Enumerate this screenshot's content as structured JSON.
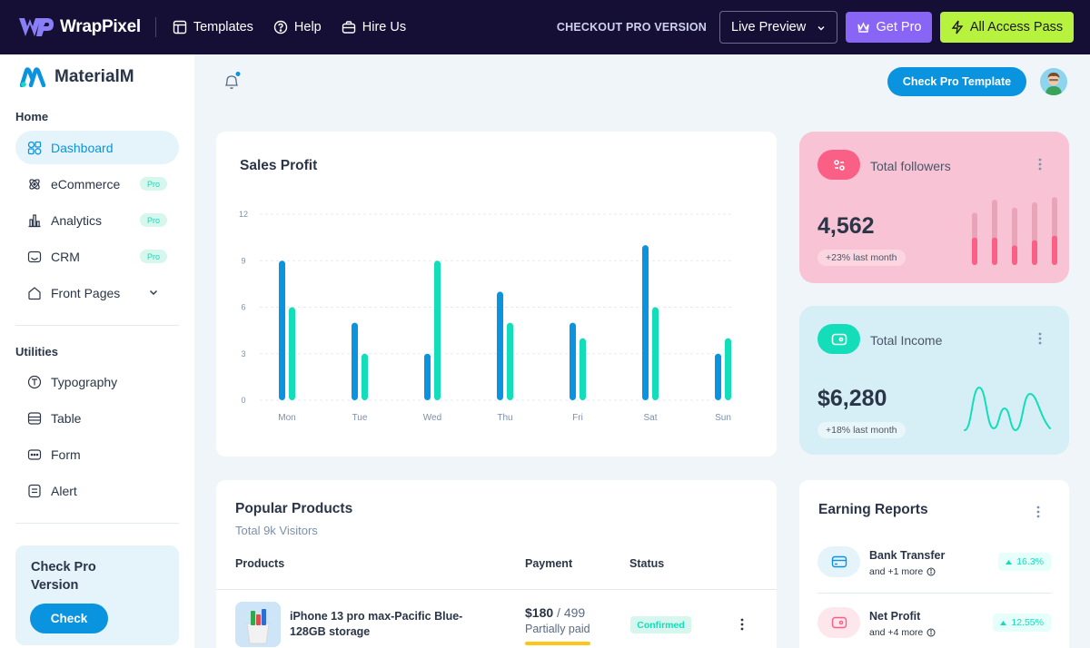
{
  "topbar": {
    "brand": "WrapPixel",
    "links": [
      {
        "label": "Templates",
        "icon": "layout-icon"
      },
      {
        "label": "Help",
        "icon": "help-circle-icon"
      },
      {
        "label": "Hire Us",
        "icon": "briefcase-icon"
      }
    ],
    "checkout_label": "CHECKOUT PRO VERSION",
    "live_preview_label": "Live Preview",
    "get_pro_label": "Get Pro",
    "all_access_label": "All Access Pass",
    "colors": {
      "background": "#150f35",
      "get_pro": "#8965f5",
      "all_access": "#b7f23f"
    }
  },
  "sidebar": {
    "brand": "MaterialM",
    "home_section": "Home",
    "home_items": [
      {
        "label": "Dashboard",
        "icon": "dashboard-icon",
        "active": true,
        "badge": ""
      },
      {
        "label": "eCommerce",
        "icon": "atom-icon",
        "active": false,
        "badge": "Pro"
      },
      {
        "label": "Analytics",
        "icon": "chart-icon",
        "active": false,
        "badge": "Pro"
      },
      {
        "label": "CRM",
        "icon": "inbox-icon",
        "active": false,
        "badge": "Pro"
      },
      {
        "label": "Front Pages",
        "icon": "home-icon",
        "active": false,
        "badge": ""
      }
    ],
    "utilities_section": "Utilities",
    "utility_items": [
      {
        "label": "Typography",
        "icon": "typography-icon"
      },
      {
        "label": "Table",
        "icon": "table-icon"
      },
      {
        "label": "Form",
        "icon": "form-icon"
      },
      {
        "label": "Alert",
        "icon": "alert-icon"
      }
    ],
    "promo": {
      "title": "Check Pro Version",
      "button": "Check"
    }
  },
  "header": {
    "check_pro_label": "Check Pro Template"
  },
  "sales_profit": {
    "title": "Sales Profit"
  },
  "chart_data": {
    "type": "bar",
    "categories": [
      "Mon",
      "Tue",
      "Wed",
      "Thu",
      "Fri",
      "Sat",
      "Sun"
    ],
    "series": [
      {
        "values": [
          9,
          5,
          3,
          7,
          5,
          10,
          3
        ],
        "color": "#0a94e0"
      },
      {
        "values": [
          6,
          3,
          9,
          5,
          4,
          6,
          4
        ],
        "color": "#13deb9"
      }
    ],
    "yticks": [
      0,
      3,
      6,
      9,
      12
    ],
    "ylim": [
      0,
      12
    ],
    "grid": true
  },
  "followers": {
    "label": "Total followers",
    "value": "4,562",
    "change": "+23% last month",
    "bg": "#f8c3d4",
    "accent": "#fa5f86",
    "mini_bars": [
      {
        "total": 0.8,
        "filled": 0.42
      },
      {
        "total": 1.0,
        "filled": 0.42
      },
      {
        "total": 0.88,
        "filled": 0.3
      },
      {
        "total": 0.96,
        "filled": 0.38
      },
      {
        "total": 1.04,
        "filled": 0.45
      }
    ]
  },
  "income": {
    "label": "Total Income",
    "value": "$6,280",
    "change": "+18% last month",
    "bg": "#d6eef5",
    "accent": "#13deb9"
  },
  "popular_products": {
    "title": "Popular Products",
    "subtitle": "Total 9k Visitors",
    "columns": [
      "Products",
      "Payment",
      "Status"
    ],
    "rows": [
      {
        "name": "iPhone 13 pro max-Pacific Blue-128GB storage",
        "paid": "$180",
        "total": "499",
        "payment_status": "Partially paid",
        "payment_progress": 0.36,
        "status": "Confirmed"
      }
    ]
  },
  "earning_reports": {
    "title": "Earning Reports",
    "items": [
      {
        "name": "Bank Transfer",
        "sub": "and +1 more",
        "pct": "16.3%",
        "icon": "credit-card-icon",
        "icon_bg": "#e5f3fb",
        "icon_color": "#0a94e0"
      },
      {
        "name": "Net Profit",
        "sub": "and +4 more",
        "pct": "12.55%",
        "icon": "wallet-icon",
        "icon_bg": "#fde6ec",
        "icon_color": "#fa5f86"
      }
    ]
  }
}
